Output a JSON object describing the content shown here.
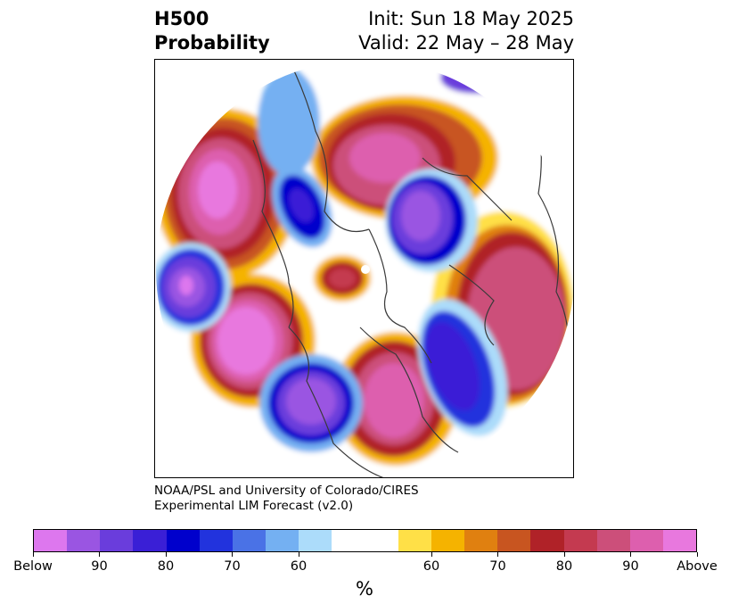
{
  "header": {
    "title_line1": "H500",
    "title_line2": "Probability",
    "init": "Init: Sun 18 May 2025",
    "valid": "Valid: 22 May – 28 May"
  },
  "credit": {
    "line1": "NOAA/PSL and University of Colorado/CIRES",
    "line2": "Experimental LIM Forecast (v2.0)"
  },
  "colorbar": {
    "unit": "%",
    "colors": [
      "#dd77ee",
      "#9a55e2",
      "#6a3ddc",
      "#3a1fd6",
      "#0000cc",
      "#2233dd",
      "#4a72e6",
      "#74b0f2",
      "#acdcfa",
      "#ffffff",
      "#ffffff",
      "#ffe047",
      "#f5b300",
      "#e08010",
      "#c85520",
      "#b02228",
      "#c43a50",
      "#cc4f7a",
      "#dd5fae",
      "#e878de"
    ],
    "tick_labels": [
      "Below",
      "90",
      "80",
      "70",
      "60",
      "60",
      "70",
      "80",
      "90",
      "Above"
    ]
  }
}
